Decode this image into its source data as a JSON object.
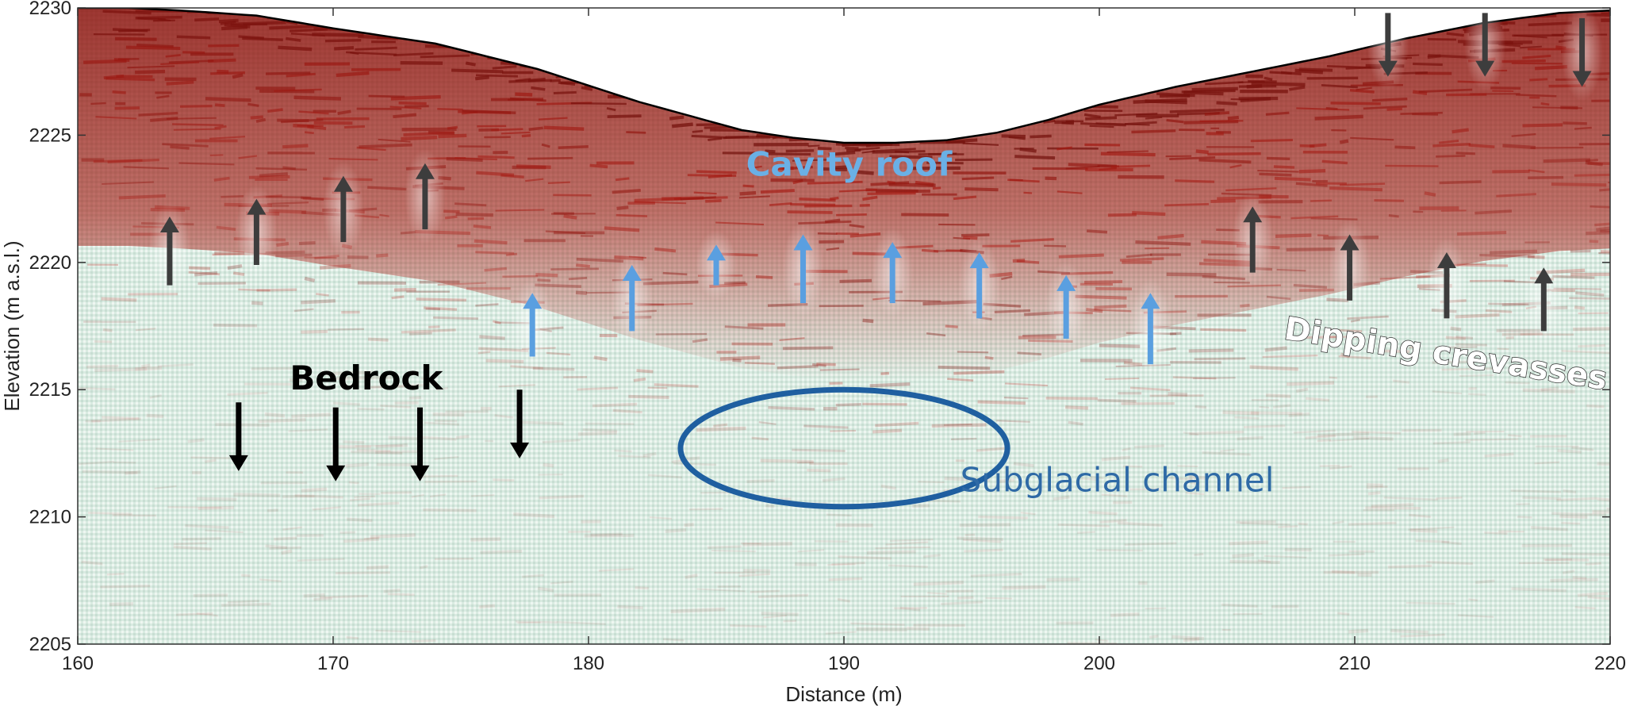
{
  "chart_data": {
    "type": "heatmap",
    "xlabel": "Distance (m)",
    "ylabel": "Elevation (m a.s.l.)",
    "xlim": [
      160,
      220
    ],
    "ylim": [
      2205,
      2230
    ],
    "xticks": [
      160,
      170,
      180,
      190,
      200,
      210,
      220
    ],
    "yticks": [
      2205,
      2210,
      2215,
      2220,
      2225,
      2230
    ],
    "colors": {
      "reflector": "#b01a12",
      "background": "#d6e8de",
      "ice_dark": "#1a0000"
    },
    "surface": {
      "x": [
        160,
        162,
        164,
        167,
        170,
        174,
        178,
        182,
        186,
        188,
        190,
        192,
        194,
        196,
        198,
        200,
        203,
        206,
        209,
        212,
        215,
        218,
        220
      ],
      "y": [
        2230,
        2230,
        2229.9,
        2229.7,
        2229.2,
        2228.6,
        2227.6,
        2226.3,
        2225.2,
        2224.9,
        2224.7,
        2224.7,
        2224.8,
        2225.1,
        2225.6,
        2226.2,
        2226.9,
        2227.5,
        2228.1,
        2228.8,
        2229.4,
        2229.8,
        2229.9
      ]
    },
    "annotations": {
      "cavity_roof": {
        "text": "Cavity roof",
        "x": 190.2,
        "y": 2223.4,
        "color": "#6ab0e6"
      },
      "bedrock": {
        "text": "Bedrock",
        "x": 171.3,
        "y": 2215.0,
        "color": "#000000"
      },
      "dipping_crevasses": {
        "text": "Dipping crevasses",
        "x": 213.5,
        "y": 2216.0,
        "color": "#ffffff",
        "rotation_deg": 9
      },
      "subglacial_channel": {
        "text": "Subglacial channel",
        "x": 200.7,
        "y": 2211.0,
        "color": "#2f6aa6"
      }
    },
    "channel_ellipse": {
      "cx": 190.0,
      "cy": 2212.7,
      "rx": 6.4,
      "ry": 2.3,
      "color": "#1f5fa0"
    },
    "arrows": {
      "dark_up": [
        {
          "x": 163.6,
          "y_tail": 2219.1,
          "y_head": 2221.8
        },
        {
          "x": 167.0,
          "y_tail": 2219.9,
          "y_head": 2222.5
        },
        {
          "x": 170.4,
          "y_tail": 2220.8,
          "y_head": 2223.4
        },
        {
          "x": 173.6,
          "y_tail": 2221.3,
          "y_head": 2223.9
        },
        {
          "x": 206.0,
          "y_tail": 2219.6,
          "y_head": 2222.2
        },
        {
          "x": 209.8,
          "y_tail": 2218.5,
          "y_head": 2221.1
        },
        {
          "x": 213.6,
          "y_tail": 2217.8,
          "y_head": 2220.4
        },
        {
          "x": 217.4,
          "y_tail": 2217.3,
          "y_head": 2219.8
        }
      ],
      "dark_down": [
        {
          "x": 211.3,
          "y_tail": 2229.8,
          "y_head": 2227.3
        },
        {
          "x": 215.1,
          "y_tail": 2229.8,
          "y_head": 2227.3
        },
        {
          "x": 218.9,
          "y_tail": 2229.6,
          "y_head": 2226.9
        }
      ],
      "blue_up": [
        {
          "x": 177.8,
          "y_tail": 2216.3,
          "y_head": 2218.8
        },
        {
          "x": 181.7,
          "y_tail": 2217.3,
          "y_head": 2219.9
        },
        {
          "x": 185.0,
          "y_tail": 2219.1,
          "y_head": 2220.7
        },
        {
          "x": 188.4,
          "y_tail": 2218.4,
          "y_head": 2221.1
        },
        {
          "x": 191.9,
          "y_tail": 2218.4,
          "y_head": 2220.8
        },
        {
          "x": 195.3,
          "y_tail": 2217.8,
          "y_head": 2220.4
        },
        {
          "x": 198.7,
          "y_tail": 2217.0,
          "y_head": 2219.5
        },
        {
          "x": 202.0,
          "y_tail": 2216.0,
          "y_head": 2218.8
        }
      ],
      "black_down": [
        {
          "x": 166.3,
          "y_tail": 2214.5,
          "y_head": 2211.8
        },
        {
          "x": 170.1,
          "y_tail": 2214.3,
          "y_head": 2211.4
        },
        {
          "x": 173.4,
          "y_tail": 2214.3,
          "y_head": 2211.4
        },
        {
          "x": 177.3,
          "y_tail": 2215.0,
          "y_head": 2212.3
        }
      ]
    }
  }
}
